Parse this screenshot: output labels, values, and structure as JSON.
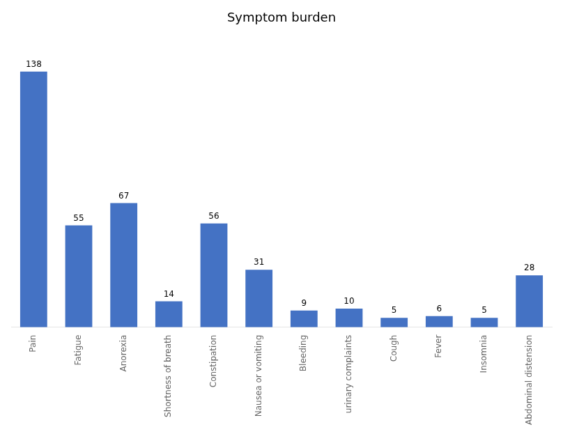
{
  "chart_data": {
    "type": "bar",
    "title": "Symptom burden",
    "categories": [
      "Pain",
      "Fatigue",
      "Anorexia",
      "Shortness of breath",
      "Constipation",
      "Nausea or vomiting",
      "Bleeding",
      "urinary complaints",
      "Cough",
      "Fever",
      "Insomnia",
      "Abdominal distension"
    ],
    "values": [
      138,
      55,
      67,
      14,
      56,
      31,
      9,
      10,
      5,
      6,
      5,
      28
    ],
    "color": "#4472C4",
    "ylim": [
      0,
      155
    ],
    "data_labels": true,
    "tick_labels": "x",
    "grid": false
  }
}
